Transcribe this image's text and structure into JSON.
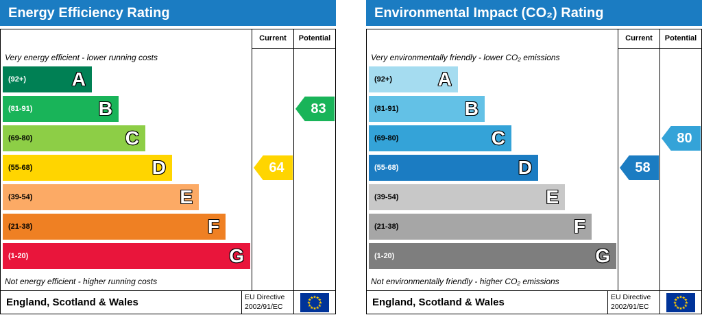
{
  "theme": {
    "header_bg": "#1b7cc2",
    "header_text": "#ffffff",
    "flag_bg": "#003399",
    "flag_stars": "#ffcc00"
  },
  "chart_data": [
    {
      "type": "bar",
      "title": "Energy Efficiency Rating",
      "value_range": [
        1,
        100
      ],
      "columns": {
        "current": "Current",
        "potential": "Potential"
      },
      "top_note": "Very energy efficient - lower running costs",
      "bottom_note": "Not energy efficient - higher running costs",
      "bands": [
        {
          "range": "(92+)",
          "letter": "A",
          "color": "#008054",
          "range_color": "#ffffff"
        },
        {
          "range": "(81-91)",
          "letter": "B",
          "color": "#19b459",
          "range_color": "#ffffff"
        },
        {
          "range": "(69-80)",
          "letter": "C",
          "color": "#8dce46",
          "range_color": "#000000"
        },
        {
          "range": "(55-68)",
          "letter": "D",
          "color": "#ffd500",
          "range_color": "#000000"
        },
        {
          "range": "(39-54)",
          "letter": "E",
          "color": "#fcaa65",
          "range_color": "#000000"
        },
        {
          "range": "(21-38)",
          "letter": "F",
          "color": "#ef8023",
          "range_color": "#000000"
        },
        {
          "range": "(1-20)",
          "letter": "G",
          "color": "#e9153b",
          "range_color": "#ffffff"
        }
      ],
      "current": {
        "value": "64",
        "color": "#ffd500",
        "band_index": 3
      },
      "potential": {
        "value": "83",
        "color": "#19b459",
        "band_index": 1
      },
      "footer": {
        "region": "England, Scotland & Wales",
        "directive_line1": "EU Directive",
        "directive_line2": "2002/91/EC"
      }
    },
    {
      "type": "bar",
      "title": "Environmental Impact (CO₂) Rating",
      "value_range": [
        1,
        100
      ],
      "columns": {
        "current": "Current",
        "potential": "Potential"
      },
      "top_note": "Very environmentally friendly - lower CO₂ emissions",
      "bottom_note": "Not environmentally friendly - higher CO₂ emissions",
      "bands": [
        {
          "range": "(92+)",
          "letter": "A",
          "color": "#a5dcf0",
          "range_color": "#000000"
        },
        {
          "range": "(81-91)",
          "letter": "B",
          "color": "#63c1e6",
          "range_color": "#000000"
        },
        {
          "range": "(69-80)",
          "letter": "C",
          "color": "#34a3d8",
          "range_color": "#000000"
        },
        {
          "range": "(55-68)",
          "letter": "D",
          "color": "#1b7cc2",
          "range_color": "#ffffff"
        },
        {
          "range": "(39-54)",
          "letter": "E",
          "color": "#c8c8c8",
          "range_color": "#000000"
        },
        {
          "range": "(21-38)",
          "letter": "F",
          "color": "#a6a6a6",
          "range_color": "#000000"
        },
        {
          "range": "(1-20)",
          "letter": "G",
          "color": "#7e7e7e",
          "range_color": "#ffffff"
        }
      ],
      "current": {
        "value": "58",
        "color": "#1b7cc2",
        "band_index": 3
      },
      "potential": {
        "value": "80",
        "color": "#34a3d8",
        "band_index": 2
      },
      "footer": {
        "region": "England, Scotland & Wales",
        "directive_line1": "EU Directive",
        "directive_line2": "2002/91/EC"
      }
    }
  ]
}
